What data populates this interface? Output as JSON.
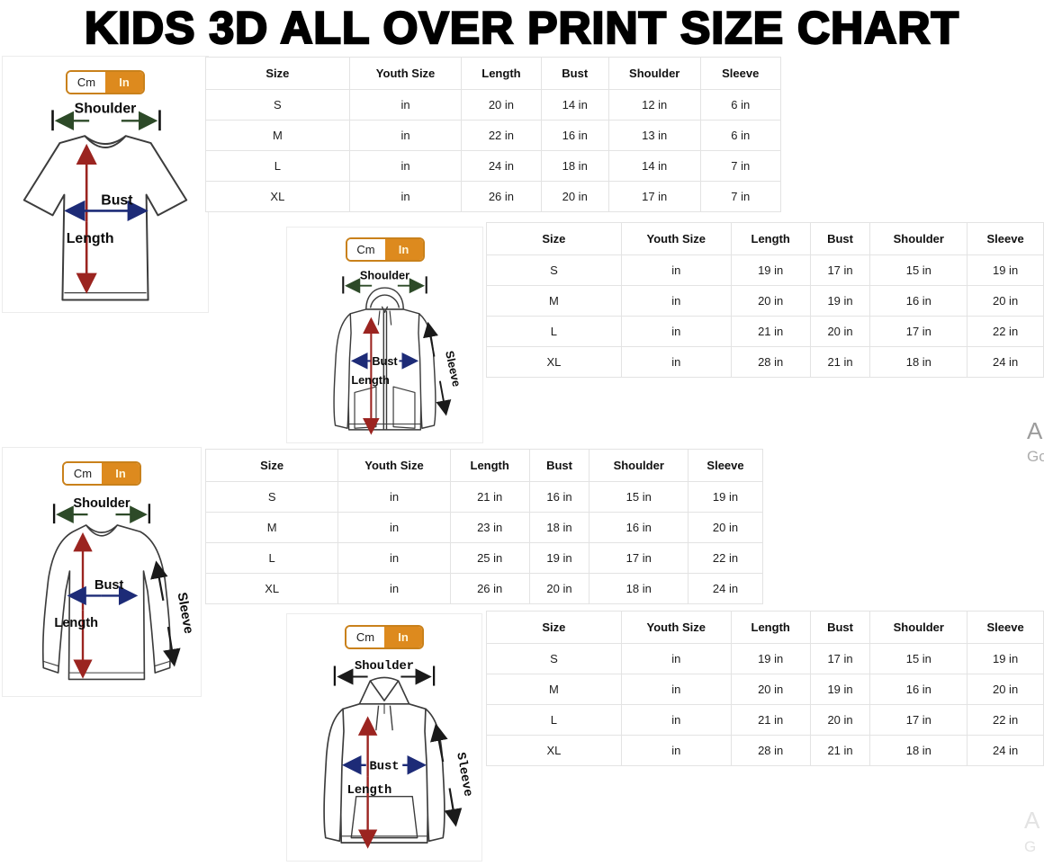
{
  "title": "KIDS 3D ALL OVER PRINT SIZE CHART",
  "unit_toggle": {
    "cm_label": "Cm",
    "in_label": "In",
    "selected": "In"
  },
  "diagram_labels": {
    "shoulder": "Shoulder",
    "bust": "Bust",
    "length": "Length",
    "sleeve": "Sleeve"
  },
  "colors": {
    "accent_orange": "#DD8A1E",
    "toggle_border": "#C9811B",
    "arrow_red": "#9B2420",
    "arrow_navy": "#1D2B77",
    "arrow_green": "#2D4A28",
    "arrow_black": "#1A1A1A",
    "grid_line": "#E3E3E3"
  },
  "table_headers": [
    "Size",
    "Youth Size",
    "Length",
    "Bust",
    "Shoulder",
    "Sleeve"
  ],
  "tables": {
    "tshirt": {
      "garment": "t-shirt",
      "rows": [
        [
          "S",
          "in",
          "20 in",
          "14 in",
          "12 in",
          "6 in"
        ],
        [
          "M",
          "in",
          "22 in",
          "16 in",
          "13 in",
          "6 in"
        ],
        [
          "L",
          "in",
          "24 in",
          "18 in",
          "14 in",
          "7 in"
        ],
        [
          "XL",
          "in",
          "26 in",
          "20 in",
          "17 in",
          "7 in"
        ]
      ]
    },
    "zip_hoodie": {
      "garment": "zip-hoodie",
      "rows": [
        [
          "S",
          "in",
          "19 in",
          "17 in",
          "15 in",
          "19 in"
        ],
        [
          "M",
          "in",
          "20 in",
          "19 in",
          "16 in",
          "20 in"
        ],
        [
          "L",
          "in",
          "21 in",
          "20 in",
          "17 in",
          "22 in"
        ],
        [
          "XL",
          "in",
          "28 in",
          "21 in",
          "18 in",
          "24 in"
        ]
      ]
    },
    "long_sleeve": {
      "garment": "long-sleeve-shirt",
      "rows": [
        [
          "S",
          "in",
          "21 in",
          "16 in",
          "15 in",
          "19 in"
        ],
        [
          "M",
          "in",
          "23 in",
          "18 in",
          "16 in",
          "20 in"
        ],
        [
          "L",
          "in",
          "25 in",
          "19 in",
          "17 in",
          "22 in"
        ],
        [
          "XL",
          "in",
          "26 in",
          "20 in",
          "18 in",
          "24 in"
        ]
      ]
    },
    "hoodie": {
      "garment": "pullover-hoodie",
      "rows": [
        [
          "S",
          "in",
          "19 in",
          "17 in",
          "15 in",
          "19 in"
        ],
        [
          "M",
          "in",
          "20 in",
          "19 in",
          "16 in",
          "20 in"
        ],
        [
          "L",
          "in",
          "21 in",
          "20 in",
          "17 in",
          "22 in"
        ],
        [
          "XL",
          "in",
          "28 in",
          "21 in",
          "18 in",
          "24 in"
        ]
      ]
    }
  },
  "watermark": {
    "side_line1": "A",
    "side_line2": "Go",
    "bottom_line1": "A",
    "bottom_line2": "G"
  }
}
